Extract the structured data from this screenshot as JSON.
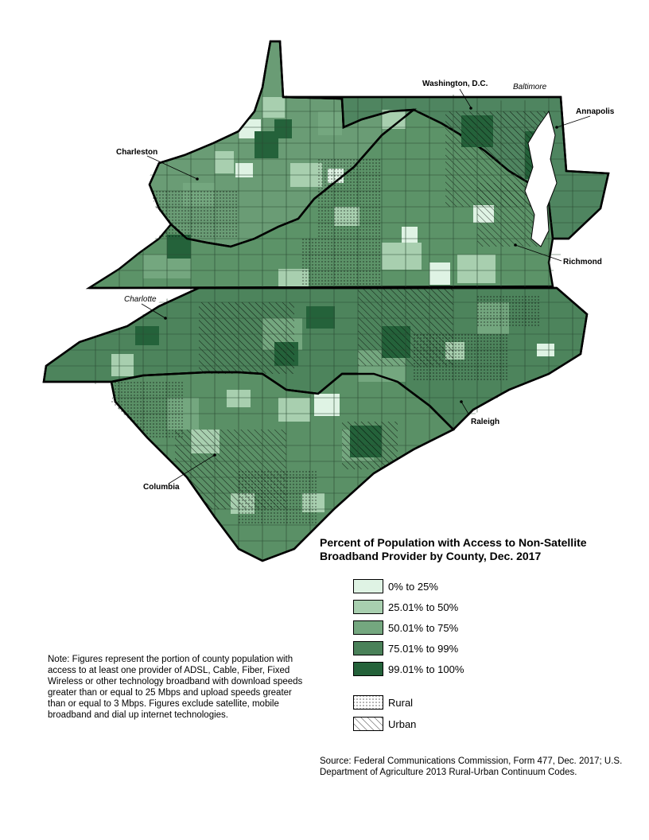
{
  "legend": {
    "title": "Percent of Population with Access to Non-Satellite Broadband Provider by County, Dec. 2017",
    "classes": [
      {
        "label": "0% to 25%",
        "color": "#dff3e4"
      },
      {
        "label": "25.01% to 50%",
        "color": "#a8cfaf"
      },
      {
        "label": "50.01% to 75%",
        "color": "#74a77f"
      },
      {
        "label": "75.01% to 99%",
        "color": "#4a8159"
      },
      {
        "label": "99.01% to 100%",
        "color": "#24623a"
      }
    ],
    "patterns": [
      {
        "label": "Rural",
        "pattern": "dots"
      },
      {
        "label": "Urban",
        "pattern": "hatch"
      }
    ]
  },
  "cities": {
    "washington": "Washington, D.C.",
    "baltimore": "Baltimore",
    "annapolis": "Annapolis",
    "charleston": "Charleston",
    "richmond": "Richmond",
    "charlotte": "Charlotte",
    "raleigh": "Raleigh",
    "columbia": "Columbia"
  },
  "note": "Note: Figures represent the portion of county population with access to at least one provider of ADSL, Cable, Fiber, Fixed Wireless or other technology broadband with download speeds greater than or equal to 25 Mbps and upload speeds greater than or equal to 3 Mbps. Figures exclude satellite, mobile broadband and dial up internet technologies.",
  "source": "Source: Federal Communications Commission, Form 477, Dec. 2017; U.S. Department of Agriculture 2013 Rural-Urban Continuum Codes.",
  "map_colors": {
    "state_fill": "#5a8e66",
    "state_border": "#000000",
    "county_border": "#2a4a32"
  }
}
